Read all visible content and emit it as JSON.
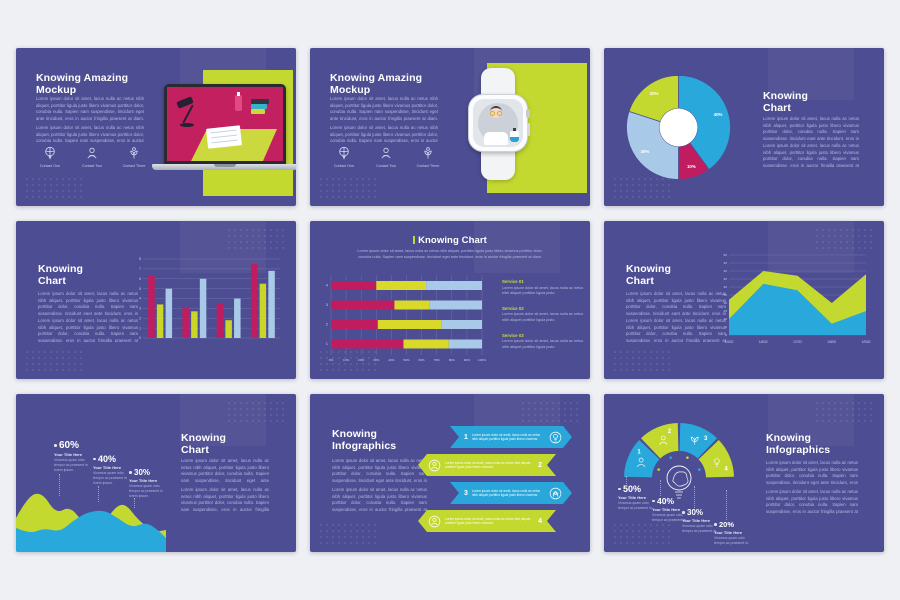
{
  "page": {
    "background": "#eef0f4",
    "slide_background": "#4d4d93"
  },
  "colors": {
    "lime": "#c3d930",
    "blue": "#29a9db",
    "light_blue": "#a9c9e8",
    "magenta": "#c01d61",
    "yellow": "#d9d92a",
    "title_text": "#ffffff",
    "body_text": "#b4bae3"
  },
  "lorem": {
    "p1": "Lorem ipsum dolor sit amet, lacus nulla ac netus nibh aliquet, porttitor ligula justo libero vivamus porttitor dolor, conubia nulla. Sapien nam suspendisse, tincidunt eget ante tincidunt, eros in auctor fringilla praesent at diam. Lorem ipsum dolor sit amet.",
    "p2": "Lorem ipsum dolor sit amet, lacus nulla ac netus nibh aliquet, porttitor ligula justo libero vivamus porttitor dolor, conubia nulla. Sapien nam suspendisse, eros in auctor fringilla praesent at diam. Lorem ipsum dolor sit amet."
  },
  "slides": {
    "mockup_laptop": {
      "title": "Knowing Amazing Mockup",
      "contacts": [
        {
          "label": "Contact One"
        },
        {
          "label": "Contact Two"
        },
        {
          "label": "Contact Three"
        }
      ]
    },
    "mockup_watch": {
      "title": "Knowing Amazing Mockup",
      "contacts": [
        {
          "label": "Contact One"
        },
        {
          "label": "Contact Two"
        },
        {
          "label": "Contact Three"
        }
      ]
    },
    "pie": {
      "title": "Knowing Chart"
    },
    "bar": {
      "title": "Knowing Chart"
    },
    "stacked": {
      "title": "Knowing Chart",
      "subtitle": "Lorem ipsum dolor sit amet, lacus nulla ac netus nibh aliquet, porttitor ligula justo libero vivamus porttitor dolor, conubia nulla. Sapien nam suspendisse, tincidunt eget ante tincidunt, eros in auctor fringilla praesent at diam.",
      "services": [
        {
          "title": "Service 01",
          "body": "Lorem ipsum dolor sit amet, lacus nulla ac netus nibh aliquet porttitor ligula justo."
        },
        {
          "title": "Service 02",
          "body": "Lorem ipsum dolor sit amet, lacus nulla ac netus nibh aliquet porttitor ligula justo."
        },
        {
          "title": "Service 03",
          "body": "Lorem ipsum dolor sit amet, lacus nulla ac netus nibh aliquet porttitor ligula justo."
        }
      ]
    },
    "area": {
      "title": "Knowing Chart"
    },
    "wave": {
      "title": "Knowing Chart",
      "callouts": [
        {
          "value": "60%",
          "title": "Your Title Here",
          "body": "Vivamus quam odio tempor ac praesent in lorem ipsum."
        },
        {
          "value": "40%",
          "title": "Your Title Here",
          "body": "Vivamus quam odio tempor ac praesent in lorem ipsum."
        },
        {
          "value": "30%",
          "title": "Your Title Here",
          "body": "Vivamus quam odio tempor ac praesent in lorem ipsum."
        }
      ]
    },
    "arrows": {
      "title": "Knowing Infographics",
      "items": [
        {
          "num": "1",
          "text": "Lorem ipsum dolor sit amet, lacus nulla ac netus nibh aliquet porttitor ligula justo libero vivamus."
        },
        {
          "num": "2",
          "text": "Lorem ipsum dolor sit amet, lacus nulla ac netus nibh aliquet porttitor ligula justo libero vivamus."
        },
        {
          "num": "3",
          "text": "Lorem ipsum dolor sit amet, lacus nulla ac netus nibh aliquet porttitor ligula justo libero vivamus."
        },
        {
          "num": "4",
          "text": "Lorem ipsum dolor sit amet, lacus nulla ac netus nibh aliquet porttitor ligula justo libero vivamus."
        }
      ]
    },
    "gauge": {
      "title": "Knowing Infographics",
      "callouts": [
        {
          "value": "50%",
          "title": "Your Title Here",
          "body": "Vivamus quam odio tempor ac praesent in."
        },
        {
          "value": "40%",
          "title": "Your Title Here",
          "body": "Vivamus quam odio tempor ac praesent in."
        },
        {
          "value": "30%",
          "title": "Your Title Here",
          "body": "Vivamus quam odio tempor ac praesent in."
        },
        {
          "value": "20%",
          "title": "Your Title Here",
          "body": "Vivamus quam odio tempor ac praesent in."
        }
      ]
    }
  },
  "chart_data": [
    {
      "id": "donut",
      "type": "pie",
      "title": "Knowing Chart",
      "donut": true,
      "labels": [
        "40%",
        "10%",
        "30%",
        "20%"
      ],
      "values": [
        40,
        10,
        30,
        20
      ],
      "colors": [
        "#29a9db",
        "#c01d61",
        "#a9c9e8",
        "#c3d930"
      ],
      "start_angle": -90,
      "legend": "none"
    },
    {
      "id": "grouped_bar",
      "type": "bar",
      "categories": [
        "1",
        "2",
        "3",
        "4"
      ],
      "series": [
        {
          "name": "Series 01",
          "color": "#c01d61",
          "values": [
            6.3,
            3.1,
            3.5,
            7.5
          ]
        },
        {
          "name": "Series 02",
          "color": "#c9d626",
          "values": [
            3.4,
            2.7,
            1.8,
            5.5
          ]
        },
        {
          "name": "Series 03",
          "color": "#a9c9e8",
          "values": [
            5.0,
            6.0,
            4.0,
            6.8
          ]
        }
      ],
      "ylim": [
        0,
        8
      ],
      "ytick_step": 1,
      "grid": true
    },
    {
      "id": "stacked_hbar",
      "type": "bar",
      "orientation": "horizontal",
      "stacked": true,
      "categories": [
        "4",
        "3",
        "2",
        "1"
      ],
      "series": [
        {
          "name": "Series 01",
          "color": "#c01d61",
          "values": [
            30,
            42,
            31,
            48
          ]
        },
        {
          "name": "Series 02",
          "color": "#d9d92a",
          "values": [
            33,
            23,
            42,
            30
          ]
        },
        {
          "name": "Series 03",
          "color": "#a9c9e8",
          "values": [
            37,
            35,
            27,
            22
          ]
        }
      ],
      "xlim": [
        0,
        100
      ],
      "xtick_step": 10,
      "xtick_suffix": "%",
      "grid": true
    },
    {
      "id": "stacked_area",
      "type": "area",
      "x": [
        "1/5/02",
        "1/6/02",
        "1/7/02",
        "1/8/02",
        "1/9/02"
      ],
      "series": [
        {
          "name": "Series 01",
          "color": "#29a9db",
          "values": [
            10,
            32,
            28,
            7,
            15
          ]
        },
        {
          "name": "Series 02",
          "color": "#c3d930",
          "values": [
            22,
            40,
            37,
            20,
            38
          ]
        }
      ],
      "ylim": [
        0,
        50
      ],
      "ytick_step": 5,
      "grid": true
    },
    {
      "id": "wave",
      "type": "area",
      "decorative": true,
      "callout_values": [
        60,
        40,
        30
      ],
      "series": [
        {
          "name": "Back wave",
          "color": "#c3d930",
          "points": [
            [
              0,
              36
            ],
            [
              12,
              14
            ],
            [
              26,
              10
            ],
            [
              40,
              32
            ],
            [
              54,
              24
            ],
            [
              68,
              42
            ],
            [
              86,
              44
            ],
            [
              100,
              24
            ],
            [
              110,
              22
            ],
            [
              122,
              38
            ],
            [
              138,
              50
            ],
            [
              150,
              48
            ]
          ]
        },
        {
          "name": "Front wave",
          "color": "#29a9db",
          "points": [
            [
              0,
              46
            ],
            [
              14,
              52
            ],
            [
              28,
              46
            ],
            [
              44,
              50
            ],
            [
              58,
              38
            ],
            [
              72,
              30
            ],
            [
              88,
              28
            ],
            [
              102,
              36
            ],
            [
              116,
              46
            ],
            [
              130,
              40
            ],
            [
              142,
              48
            ],
            [
              150,
              56
            ]
          ]
        }
      ]
    },
    {
      "id": "semi_gauge",
      "type": "pie",
      "half": true,
      "segments": [
        {
          "num": "1",
          "color": "#29a9db",
          "icon": "person"
        },
        {
          "num": "2",
          "color": "#c3d930",
          "icon": "person"
        },
        {
          "num": "3",
          "color": "#29a9db",
          "icon": "plant"
        },
        {
          "num": "4",
          "color": "#c3d930",
          "icon": "bulb"
        }
      ],
      "callout_values": [
        50,
        40,
        30,
        20
      ]
    }
  ]
}
